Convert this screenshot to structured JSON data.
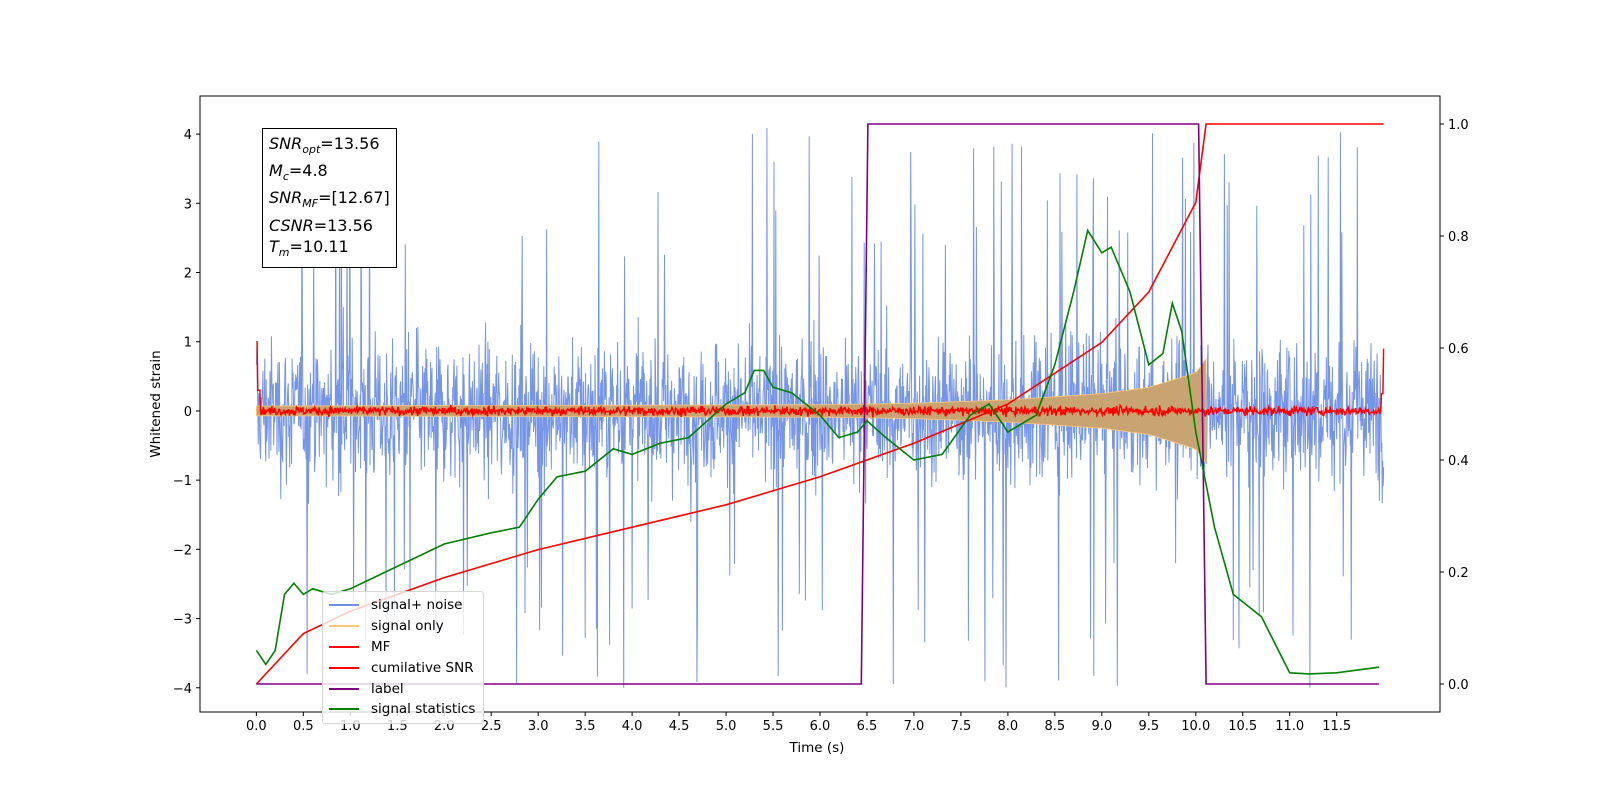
{
  "chart_data": {
    "type": "line",
    "xlabel": "Time (s)",
    "ylabel": "Whitened strain",
    "xlim": [
      -0.6,
      12.6
    ],
    "ylim": [
      -4.35,
      4.55
    ],
    "ylim_right": [
      -0.05,
      1.05
    ],
    "x_ticks": [
      "0.0",
      "0.5",
      "1.0",
      "1.5",
      "2.0",
      "2.5",
      "3.0",
      "3.5",
      "4.0",
      "4.5",
      "5.0",
      "5.5",
      "6.0",
      "6.5",
      "7.0",
      "7.5",
      "8.0",
      "8.5",
      "9.0",
      "9.5",
      "10.0",
      "10.5",
      "11.0",
      "11.5"
    ],
    "y_ticks_left": [
      "−4",
      "−3",
      "−2",
      "−1",
      "0",
      "1",
      "2",
      "3",
      "4"
    ],
    "y_ticks_right": [
      "0.0",
      "0.2",
      "0.4",
      "0.6",
      "0.8",
      "1.0"
    ],
    "grid": false,
    "legend_position": "lower-left",
    "annotation": {
      "snr_opt": "13.56",
      "mc": "4.8",
      "snr_mf": "[12.67]",
      "csnr": "13.56",
      "tm": "10.11"
    },
    "series": [
      {
        "name": "signal+ noise",
        "color": "#6f8fe6",
        "axis": "left",
        "note_values": "white noise band roughly ±2.2 with spikes to ±4.2, x from 0.0 to 12.0"
      },
      {
        "name": "signal only",
        "color": "#fdc77a",
        "axis": "left",
        "envelope": {
          "x": [
            0.0,
            6.0,
            7.0,
            8.0,
            9.0,
            9.5,
            10.0,
            10.11
          ],
          "amp": [
            0.07,
            0.09,
            0.11,
            0.16,
            0.25,
            0.34,
            0.55,
            0.75
          ]
        }
      },
      {
        "name": "MF",
        "color": "#ff0000",
        "axis": "left",
        "note_values": "noisy trace around 0 (±0.15), spikes to 1.0 at x=0.0 and 0.9 at x=12.0"
      },
      {
        "name": "cumilative SNR",
        "color": "#ff0000",
        "axis": "right",
        "x": [
          0.0,
          0.5,
          1.0,
          2.0,
          3.0,
          4.0,
          5.0,
          6.0,
          7.0,
          8.0,
          9.0,
          9.5,
          10.0,
          10.11,
          12.0
        ],
        "y": [
          0.0,
          0.09,
          0.13,
          0.19,
          0.24,
          0.28,
          0.32,
          0.37,
          0.43,
          0.5,
          0.61,
          0.7,
          0.86,
          1.0,
          1.0
        ]
      },
      {
        "name": "label",
        "color": "#800080",
        "axis": "right",
        "x": [
          0.0,
          6.44,
          6.51,
          10.03,
          10.11,
          11.95
        ],
        "y": [
          0.0,
          0.0,
          1.0,
          1.0,
          0.0,
          0.0
        ]
      },
      {
        "name": "signal statistics",
        "color": "#008000",
        "axis": "right",
        "x": [
          0.0,
          0.1,
          0.2,
          0.3,
          0.4,
          0.5,
          0.6,
          0.8,
          1.0,
          1.5,
          2.0,
          2.5,
          2.8,
          3.0,
          3.2,
          3.5,
          3.8,
          4.0,
          4.3,
          4.6,
          4.8,
          5.0,
          5.2,
          5.3,
          5.4,
          5.5,
          5.7,
          6.0,
          6.2,
          6.4,
          6.5,
          6.7,
          7.0,
          7.3,
          7.6,
          7.8,
          8.0,
          8.3,
          8.5,
          8.7,
          8.85,
          9.0,
          9.1,
          9.3,
          9.5,
          9.65,
          9.75,
          9.85,
          10.0,
          10.2,
          10.4,
          10.7,
          11.0,
          11.2,
          11.5,
          11.95
        ],
        "y": [
          0.06,
          0.035,
          0.06,
          0.16,
          0.18,
          0.16,
          0.17,
          0.16,
          0.17,
          0.21,
          0.25,
          0.27,
          0.28,
          0.33,
          0.37,
          0.38,
          0.42,
          0.41,
          0.43,
          0.44,
          0.47,
          0.5,
          0.52,
          0.56,
          0.56,
          0.53,
          0.52,
          0.48,
          0.44,
          0.45,
          0.47,
          0.44,
          0.4,
          0.41,
          0.48,
          0.5,
          0.45,
          0.48,
          0.57,
          0.7,
          0.81,
          0.77,
          0.78,
          0.7,
          0.57,
          0.59,
          0.68,
          0.63,
          0.45,
          0.28,
          0.16,
          0.12,
          0.02,
          0.018,
          0.02,
          0.03
        ]
      }
    ]
  }
}
